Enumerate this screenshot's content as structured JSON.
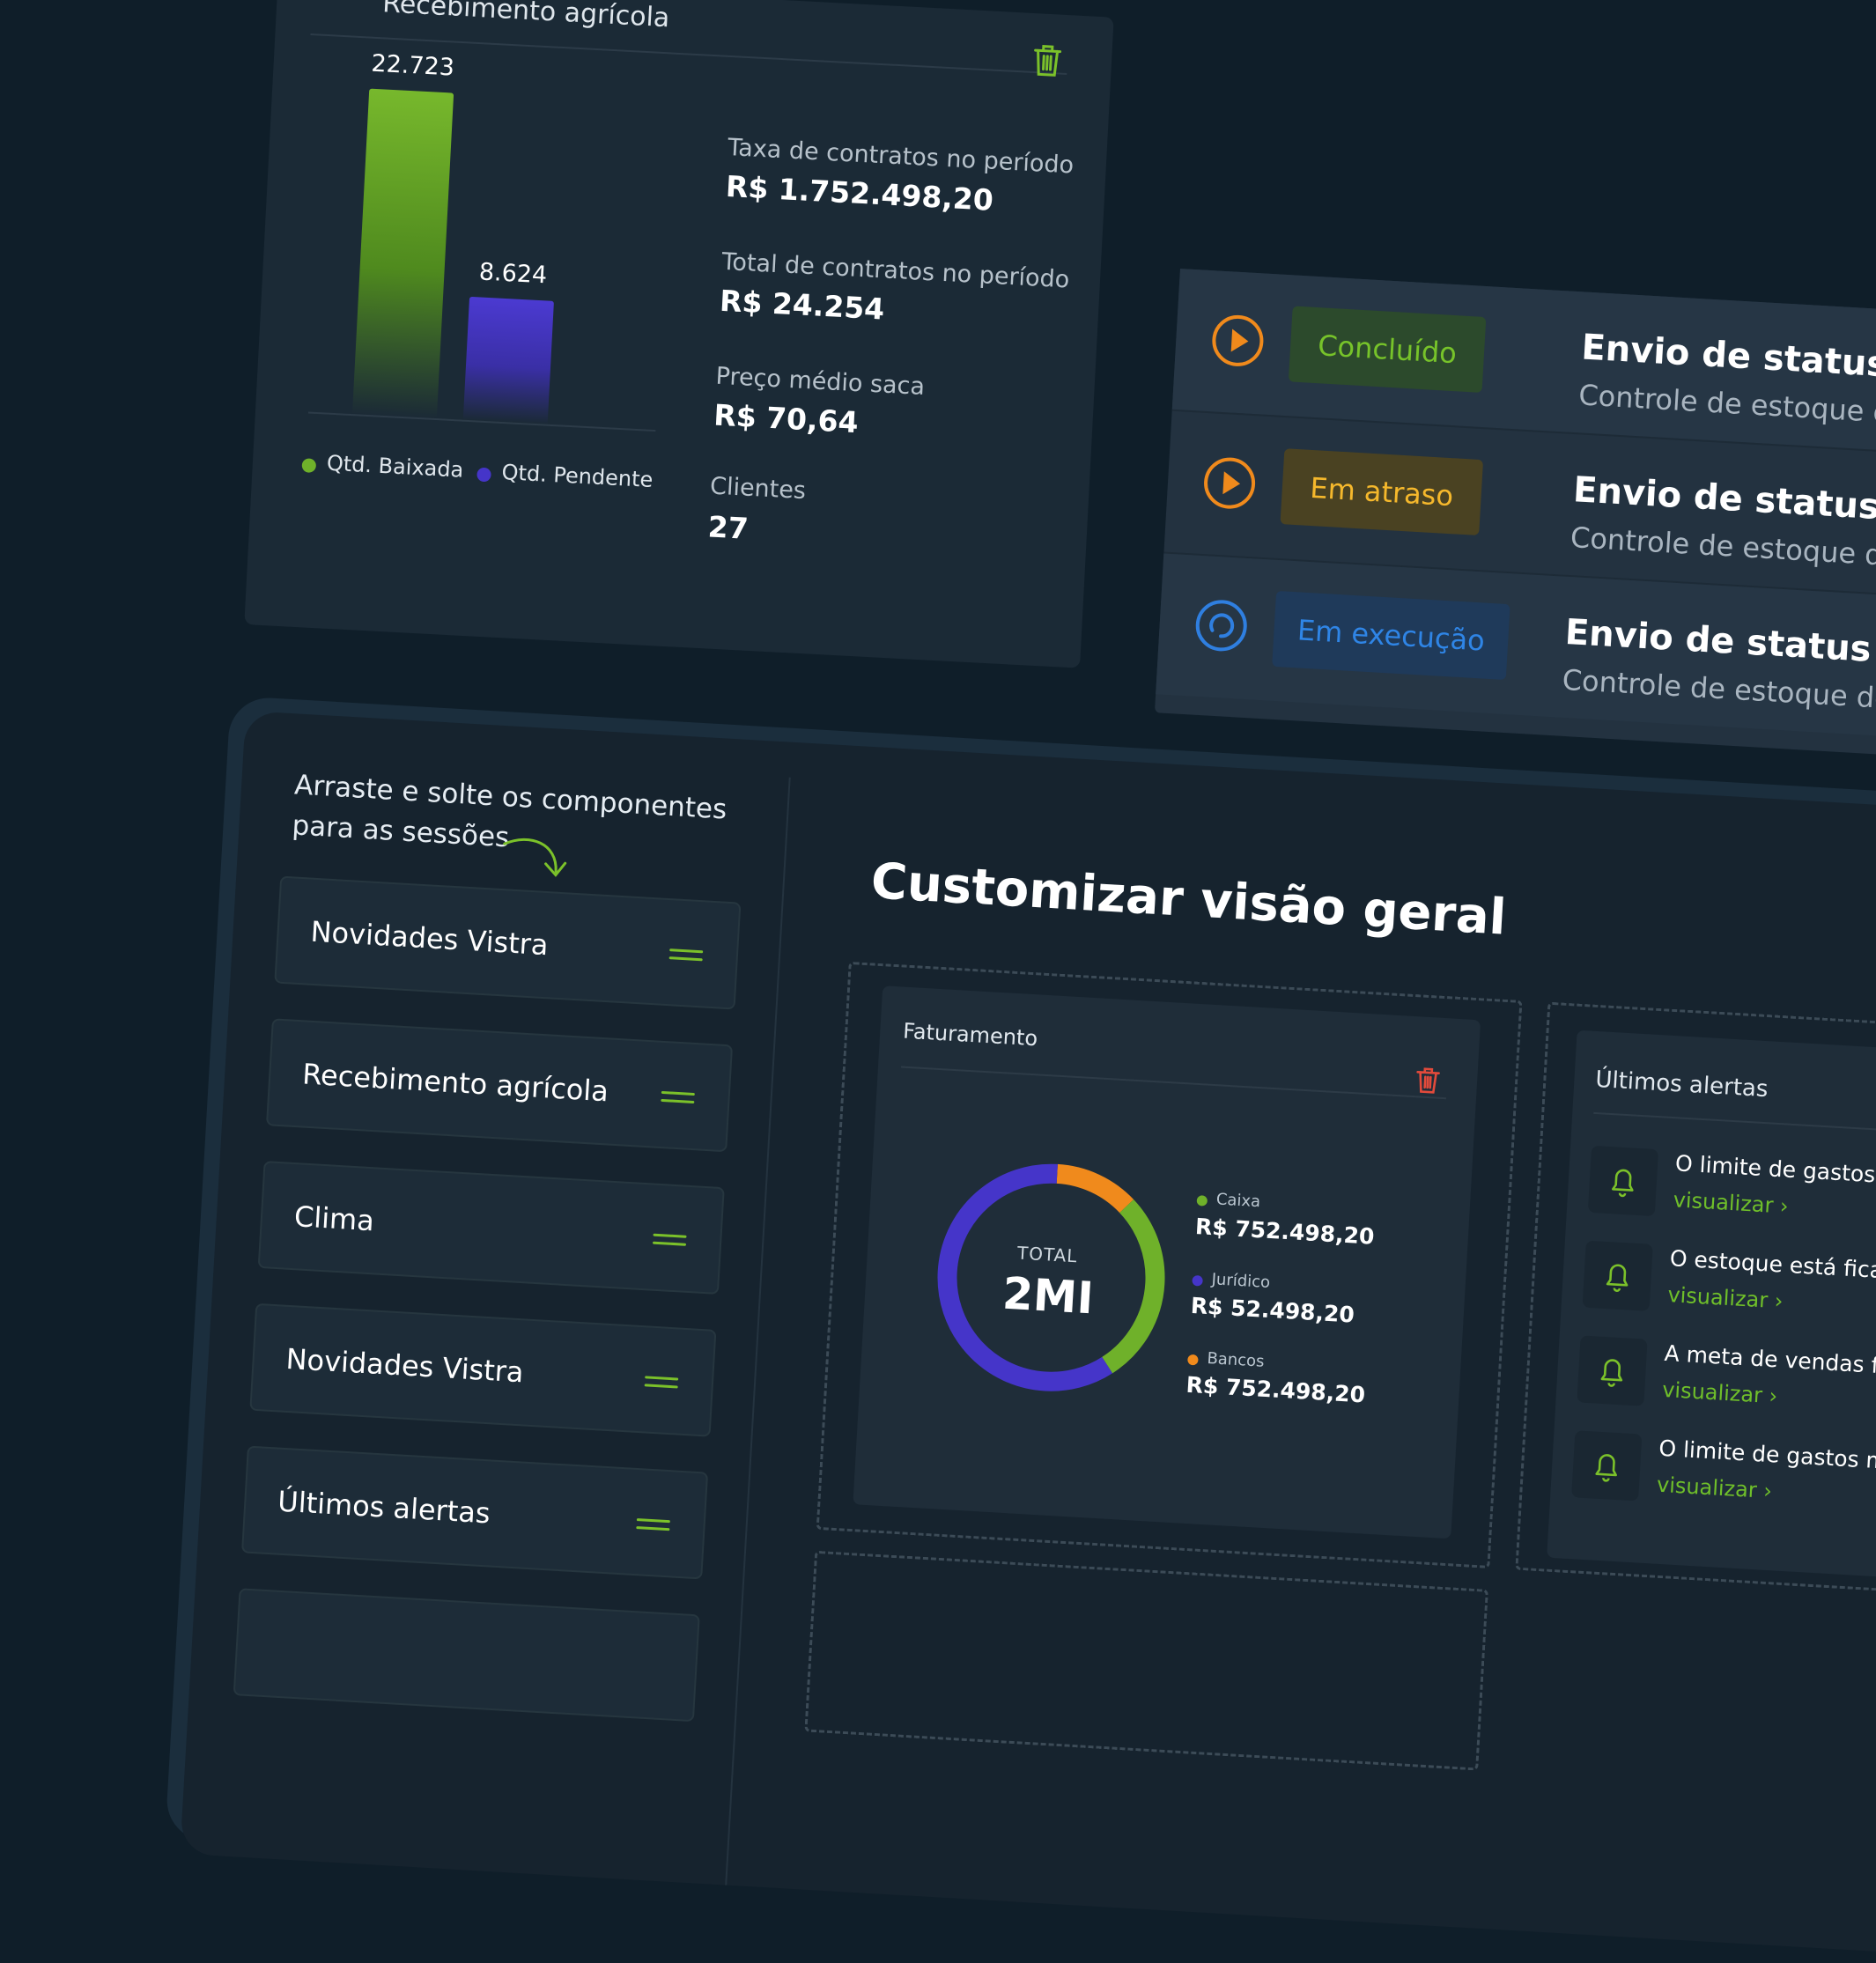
{
  "receiving_card": {
    "title": "Recebimento agrícola",
    "chart_data": {
      "type": "bar",
      "categories": [
        "Qtd. Baixada",
        "Qtd. Pendente"
      ],
      "values": [
        22723,
        8624
      ],
      "value_labels": [
        "22.723",
        "8.624"
      ],
      "colors": [
        "#6fb12a",
        "#4535c9"
      ],
      "legend": [
        "Qtd. Baixada",
        "Qtd. Pendente"
      ],
      "legend_position": "bottom"
    },
    "stats": [
      {
        "label": "Taxa de contratos no período",
        "value": "R$ 1.752.498,20"
      },
      {
        "label": "Total de contratos no período",
        "value": "R$ 24.254"
      },
      {
        "label": "Preço médio saca",
        "value": "R$ 70,64"
      },
      {
        "label": "Clientes",
        "value": "27"
      }
    ]
  },
  "status_list": [
    {
      "badge": "Concluído",
      "title": "Envio de status d",
      "subtitle": "Controle de estoque de",
      "icon": "play-icon",
      "color": "#f08a1c"
    },
    {
      "badge": "Em atraso",
      "title": "Envio de status d",
      "subtitle": "Controle de estoque de",
      "icon": "play-icon",
      "color": "#f08a1c"
    },
    {
      "badge": "Em execução",
      "title": "Envio de status de",
      "subtitle": "Controle de estoque de d",
      "icon": "loading-icon",
      "color": "#2f7fe0"
    }
  ],
  "customize": {
    "hint_line1": "Arraste e solte os componentes",
    "hint_line2": "para as sessões",
    "components": [
      "Novidades Vistra",
      "Recebimento agrícola",
      "Clima",
      "Novidades Vistra",
      "Últimos alertas"
    ],
    "title": "Customizar visão geral",
    "billing": {
      "label": "Faturamento",
      "total_label": "TOTAL",
      "total_value": "2MI",
      "chart_data": {
        "type": "pie",
        "categories": [
          "Caixa",
          "Jurídico",
          "Bancos"
        ],
        "values": [
          752498.2,
          52498.2,
          752498.2
        ],
        "value_labels": [
          "R$ 752.498,20",
          "R$ 52.498,20",
          "R$ 752.498,20"
        ],
        "colors": [
          "#6fb12a",
          "#4535c9",
          "#f08a1c"
        ],
        "donut_shares": [
          0.28,
          0.6,
          0.12
        ]
      }
    },
    "alerts": {
      "label": "Últimos alertas",
      "items": [
        {
          "text": "O limite de gastos mens",
          "link": "visualizar ›"
        },
        {
          "text": "O estoque está ficando n",
          "link": "visualizar ›"
        },
        {
          "text": "A meta de vendas foi alca",
          "link": "visualizar ›"
        },
        {
          "text": "O limite de gastos mensa",
          "link": "visualizar ›"
        }
      ]
    }
  }
}
